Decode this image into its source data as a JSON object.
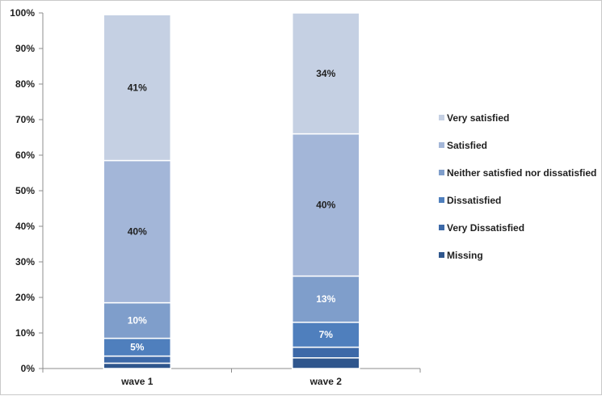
{
  "chart_data": {
    "type": "bar",
    "stacked": true,
    "percent": true,
    "categories": [
      "wave 1",
      "wave 2"
    ],
    "ylim": [
      0,
      100
    ],
    "yticks": [
      "0%",
      "10%",
      "20%",
      "30%",
      "40%",
      "50%",
      "60%",
      "70%",
      "80%",
      "90%",
      "100%"
    ],
    "grid": false,
    "legend_position": "right",
    "series": [
      {
        "name": "Missing",
        "color": "#2f568d",
        "values": [
          1.5,
          3
        ],
        "labels": [
          "",
          ""
        ]
      },
      {
        "name": "Very Dissatisfied",
        "color": "#3d69a8",
        "values": [
          2,
          3
        ],
        "labels": [
          "",
          ""
        ]
      },
      {
        "name": "Dissatisfied",
        "color": "#4f7fbd",
        "values": [
          5,
          7
        ],
        "labels": [
          "5%",
          "7%"
        ]
      },
      {
        "name": "Neither satisfied nor dissatisfied",
        "color": "#7f9ecb",
        "values": [
          10,
          13
        ],
        "labels": [
          "10%",
          "13%"
        ]
      },
      {
        "name": "Satisfied",
        "color": "#a3b6d8",
        "values": [
          40,
          40
        ],
        "labels": [
          "40%",
          "40%"
        ]
      },
      {
        "name": "Very satisfied",
        "color": "#c5d0e3",
        "values": [
          41,
          34
        ],
        "labels": [
          "41%",
          "34%"
        ]
      }
    ]
  }
}
